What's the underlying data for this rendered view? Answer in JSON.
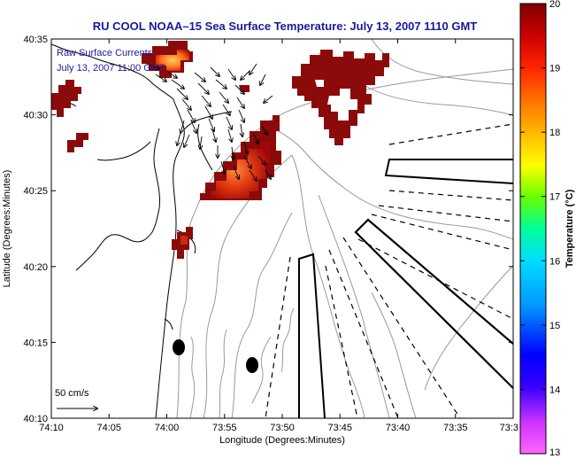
{
  "title": "RU COOL  NOAA–15  Sea Surface Temperature:  July 13, 2007 1110 GMT",
  "legend": {
    "line1": "Raw Surface Currents",
    "line2": "July 13, 2007 11:00 GMT"
  },
  "scale_label": "50 cm/s",
  "axes": {
    "xlabel": "Longitude (Degrees:Minutes)",
    "ylabel": "Latitude (Degrees:Minutes)",
    "xticks": [
      "74:10",
      "74:05",
      "74:00",
      "73:55",
      "73:50",
      "73:45",
      "73:40",
      "73:35",
      "73:3"
    ],
    "yticks": [
      "40:35",
      "40:30",
      "40:25",
      "40:20",
      "40:15",
      "40:10"
    ]
  },
  "colorbar": {
    "label": "Temperature (°C)",
    "ticks": [
      "20",
      "19",
      "18",
      "17",
      "16",
      "15",
      "14",
      "13"
    ],
    "min": 13,
    "max": 20,
    "colors": [
      "#ff66ff",
      "#0000ff",
      "#00ccff",
      "#00ff66",
      "#ffff00",
      "#ff8800",
      "#ff0000",
      "#7f0000"
    ]
  },
  "colors": {
    "title": "#1a1a9c",
    "warm_sst": "#8b0a0a"
  }
}
